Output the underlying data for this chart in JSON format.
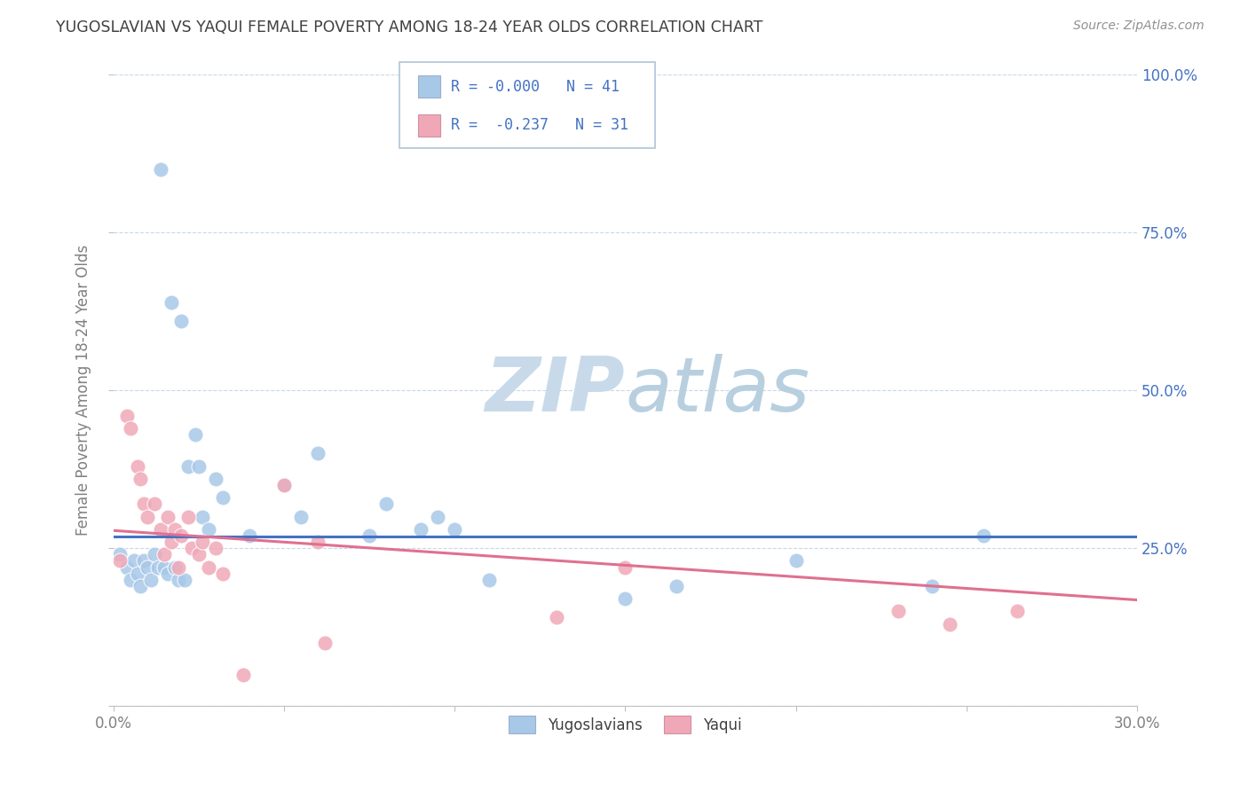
{
  "title": "YUGOSLAVIAN VS YAQUI FEMALE POVERTY AMONG 18-24 YEAR OLDS CORRELATION CHART",
  "source": "Source: ZipAtlas.com",
  "ylabel": "Female Poverty Among 18-24 Year Olds",
  "xlim": [
    0.0,
    0.3
  ],
  "ylim": [
    0.0,
    1.0
  ],
  "xticks": [
    0.0,
    0.05,
    0.1,
    0.15,
    0.2,
    0.25,
    0.3
  ],
  "xtick_labels": [
    "0.0%",
    "",
    "",
    "",
    "",
    "",
    "30.0%"
  ],
  "yticks_right": [
    0.0,
    0.25,
    0.5,
    0.75,
    1.0
  ],
  "ytick_labels_right": [
    "",
    "25.0%",
    "50.0%",
    "75.0%",
    "100.0%"
  ],
  "legend_entry1": "R = -0.000   N = 41",
  "legend_entry2": "R =  -0.237   N = 31",
  "blue_color": "#a8c8e8",
  "pink_color": "#f0a8b8",
  "blue_line_color": "#4472c4",
  "pink_line_color": "#e07090",
  "watermark_color": "#dce8f0",
  "title_color": "#404040",
  "source_color": "#909090",
  "axis_color": "#808080",
  "grid_color": "#c8d8e8",
  "legend_text_color": "#4472c4",
  "yugoslavian_x": [
    0.002,
    0.004,
    0.005,
    0.006,
    0.007,
    0.008,
    0.009,
    0.01,
    0.011,
    0.012,
    0.013,
    0.014,
    0.015,
    0.016,
    0.017,
    0.018,
    0.019,
    0.02,
    0.021,
    0.022,
    0.024,
    0.025,
    0.026,
    0.028,
    0.03,
    0.032,
    0.04,
    0.05,
    0.055,
    0.06,
    0.075,
    0.08,
    0.09,
    0.095,
    0.1,
    0.11,
    0.15,
    0.165,
    0.2,
    0.24,
    0.255
  ],
  "yugoslavian_y": [
    0.24,
    0.22,
    0.2,
    0.23,
    0.21,
    0.19,
    0.23,
    0.22,
    0.2,
    0.24,
    0.22,
    0.85,
    0.22,
    0.21,
    0.64,
    0.22,
    0.2,
    0.61,
    0.2,
    0.38,
    0.43,
    0.38,
    0.3,
    0.28,
    0.36,
    0.33,
    0.27,
    0.35,
    0.3,
    0.4,
    0.27,
    0.32,
    0.28,
    0.3,
    0.28,
    0.2,
    0.17,
    0.19,
    0.23,
    0.19,
    0.27
  ],
  "yaqui_x": [
    0.002,
    0.004,
    0.005,
    0.007,
    0.008,
    0.009,
    0.01,
    0.012,
    0.014,
    0.015,
    0.016,
    0.017,
    0.018,
    0.019,
    0.02,
    0.022,
    0.023,
    0.025,
    0.026,
    0.028,
    0.03,
    0.032,
    0.038,
    0.05,
    0.06,
    0.062,
    0.13,
    0.15,
    0.23,
    0.245,
    0.265
  ],
  "yaqui_y": [
    0.23,
    0.46,
    0.44,
    0.38,
    0.36,
    0.32,
    0.3,
    0.32,
    0.28,
    0.24,
    0.3,
    0.26,
    0.28,
    0.22,
    0.27,
    0.3,
    0.25,
    0.24,
    0.26,
    0.22,
    0.25,
    0.21,
    0.05,
    0.35,
    0.26,
    0.1,
    0.14,
    0.22,
    0.15,
    0.13,
    0.15
  ],
  "blue_trend_x": [
    0.0,
    0.3
  ],
  "blue_trend_y": [
    0.268,
    0.268
  ],
  "pink_trend_x": [
    0.0,
    0.3
  ],
  "pink_trend_y": [
    0.278,
    0.168
  ]
}
